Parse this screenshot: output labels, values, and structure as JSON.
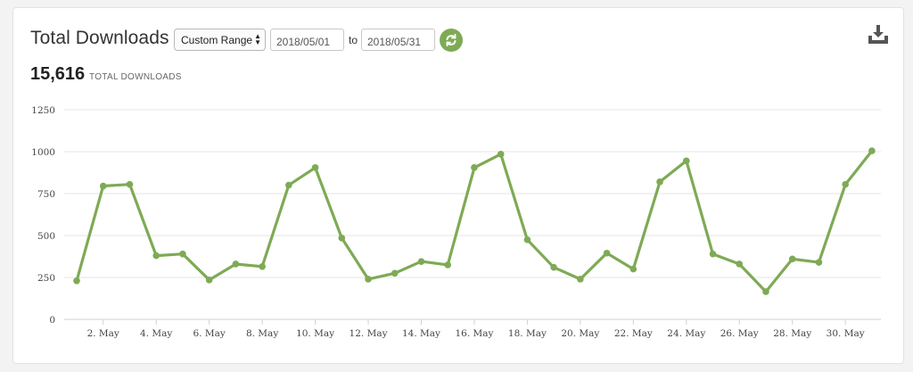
{
  "header": {
    "title": "Total Downloads",
    "range_select": "Custom Range",
    "date_from": "2018/05/01",
    "to_label": "to",
    "date_to": "2018/05/31"
  },
  "summary": {
    "total_value": "15,616",
    "total_label": "TOTAL DOWNLOADS"
  },
  "icons": {
    "refresh": "refresh-icon",
    "download": "download-icon"
  },
  "colors": {
    "line": "#7eaa55",
    "accent": "#7eaa55"
  },
  "chart_data": {
    "type": "line",
    "title": "",
    "xlabel": "",
    "ylabel": "",
    "x": [
      1,
      2,
      3,
      4,
      5,
      6,
      7,
      8,
      9,
      10,
      11,
      12,
      13,
      14,
      15,
      16,
      17,
      18,
      19,
      20,
      21,
      22,
      23,
      24,
      25,
      26,
      27,
      28,
      29,
      30,
      31
    ],
    "x_tick_labels": [
      "2. May",
      "4. May",
      "6. May",
      "8. May",
      "10. May",
      "12. May",
      "14. May",
      "16. May",
      "18. May",
      "20. May",
      "22. May",
      "24. May",
      "26. May",
      "28. May",
      "30. May"
    ],
    "x_tick_days": [
      2,
      4,
      6,
      8,
      10,
      12,
      14,
      16,
      18,
      20,
      22,
      24,
      26,
      28,
      30
    ],
    "y_ticks": [
      0,
      250,
      500,
      750,
      1000,
      1250
    ],
    "ylim": [
      0,
      1250
    ],
    "grid": true,
    "series": [
      {
        "values": [
          230,
          795,
          805,
          380,
          390,
          235,
          330,
          315,
          800,
          905,
          485,
          240,
          275,
          345,
          325,
          905,
          985,
          475,
          310,
          240,
          395,
          300,
          820,
          945,
          390,
          330,
          165,
          360,
          340,
          805,
          1005
        ]
      }
    ]
  }
}
